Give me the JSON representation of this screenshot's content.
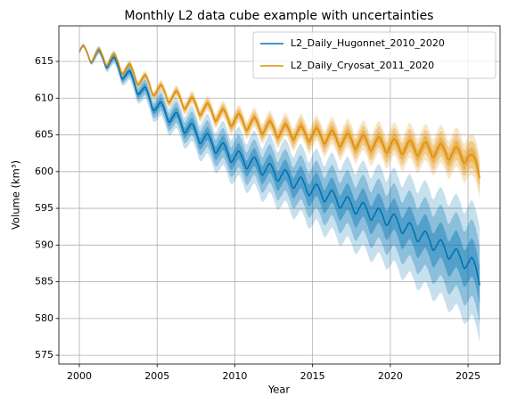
{
  "chart_data": {
    "type": "line",
    "title": "Monthly L2 data cube example with uncertainties",
    "xlabel": "Year",
    "ylabel": "Volume (km³)",
    "xlim": [
      1998.68,
      2027.06
    ],
    "ylim": [
      573.8,
      619.85
    ],
    "xticks": [
      2000,
      2005,
      2010,
      2015,
      2020,
      2025
    ],
    "yticks": [
      575,
      580,
      585,
      590,
      595,
      600,
      605,
      610,
      615
    ],
    "grid": true,
    "legend": "upper right",
    "x": [
      2000,
      2000.25,
      2000.5,
      2000.75,
      2001,
      2001.25,
      2001.5,
      2001.75,
      2002,
      2002.25,
      2002.5,
      2002.75,
      2003,
      2003.25,
      2003.5,
      2003.75,
      2004,
      2004.25,
      2004.5,
      2004.75,
      2005,
      2005.25,
      2005.5,
      2005.75,
      2006,
      2006.25,
      2006.5,
      2006.75,
      2007,
      2007.25,
      2007.5,
      2007.75,
      2008,
      2008.25,
      2008.5,
      2008.75,
      2009,
      2009.25,
      2009.5,
      2009.75,
      2010,
      2010.25,
      2010.5,
      2010.75,
      2011,
      2011.25,
      2011.5,
      2011.75,
      2012,
      2012.25,
      2012.5,
      2012.75,
      2013,
      2013.25,
      2013.5,
      2013.75,
      2014,
      2014.25,
      2014.5,
      2014.75,
      2015,
      2015.25,
      2015.5,
      2015.75,
      2016,
      2016.25,
      2016.5,
      2016.75,
      2017,
      2017.25,
      2017.5,
      2017.75,
      2018,
      2018.25,
      2018.5,
      2018.75,
      2019,
      2019.25,
      2019.5,
      2019.75,
      2020,
      2020.25,
      2020.5,
      2020.75,
      2021,
      2021.25,
      2021.5,
      2021.75,
      2022,
      2022.25,
      2022.5,
      2022.75,
      2023,
      2023.25,
      2023.5,
      2023.75,
      2024,
      2024.25,
      2024.5,
      2024.75,
      2025,
      2025.25,
      2025.5,
      2025.75
    ],
    "series": [
      {
        "name": "L2_Daily_Hugonnet_2010_2020",
        "color": "#0173b2",
        "values": [
          616.3,
          617.15,
          616.2,
          614.85,
          615.7,
          616.53,
          615.55,
          614.18,
          615.0,
          615.55,
          614.3,
          612.65,
          613.2,
          613.65,
          612.3,
          610.55,
          611.0,
          611.45,
          610.1,
          608.35,
          608.8,
          609.45,
          608.3,
          606.75,
          607.4,
          608.03,
          606.85,
          605.28,
          605.9,
          606.55,
          605.4,
          603.85,
          604.5,
          605.18,
          604.05,
          602.53,
          603.2,
          603.9,
          602.8,
          601.3,
          602.0,
          602.8,
          601.8,
          600.4,
          601.2,
          601.98,
          600.95,
          599.53,
          600.3,
          601.1,
          600.1,
          598.7,
          599.5,
          600.25,
          599.2,
          597.75,
          598.5,
          599.25,
          598.2,
          596.75,
          597.5,
          598.3,
          597.3,
          595.9,
          596.7,
          597.48,
          596.45,
          595.03,
          595.8,
          596.6,
          595.6,
          594.2,
          595.0,
          595.8,
          594.8,
          593.4,
          594.2,
          595.03,
          594.05,
          592.68,
          593.5,
          594.2,
          593.1,
          591.6,
          592.3,
          593.03,
          591.95,
          590.48,
          591.2,
          591.9,
          590.8,
          589.3,
          590.0,
          590.7,
          589.6,
          588.1,
          588.8,
          589.48,
          588.35,
          586.83,
          587.5,
          588.3,
          587.0,
          584.5
        ],
        "uncertainty": [
          0.1,
          0.1,
          0.1,
          0.1,
          0.2,
          0.2,
          0.2,
          0.2,
          0.3,
          0.3,
          0.3,
          0.3,
          0.4,
          0.4,
          0.4,
          0.4,
          0.5,
          0.5,
          0.5,
          0.5,
          0.6,
          0.6,
          0.6,
          0.6,
          0.7,
          0.7,
          0.7,
          0.7,
          0.8,
          0.8,
          0.8,
          0.8,
          0.9,
          0.9,
          0.9,
          0.9,
          1.0,
          1.0,
          1.0,
          1.0,
          1.1,
          1.1,
          1.1,
          1.1,
          1.2,
          1.2,
          1.2,
          1.2,
          1.3,
          1.3,
          1.3,
          1.3,
          1.4,
          1.4,
          1.4,
          1.4,
          1.5,
          1.5,
          1.5,
          1.5,
          1.6,
          1.6,
          1.6,
          1.6,
          1.7,
          1.7,
          1.7,
          1.7,
          1.8,
          1.8,
          1.8,
          1.8,
          1.9,
          1.9,
          1.9,
          1.9,
          2.0,
          2.0,
          2.0,
          2.0,
          2.1,
          2.1,
          2.1,
          2.1,
          2.2,
          2.2,
          2.2,
          2.2,
          2.3,
          2.3,
          2.3,
          2.3,
          2.4,
          2.4,
          2.4,
          2.4,
          2.5,
          2.5,
          2.5,
          2.5,
          2.6,
          2.6,
          2.6,
          2.6
        ]
      },
      {
        "name": "L2_Daily_Cryosat_2011_2020",
        "color": "#de8f05",
        "values": [
          616.3,
          617.18,
          616.25,
          614.93,
          615.8,
          616.68,
          615.75,
          614.43,
          615.3,
          615.98,
          614.85,
          613.33,
          614.0,
          614.63,
          613.45,
          611.88,
          612.5,
          613.13,
          611.95,
          610.38,
          611.0,
          611.8,
          610.8,
          609.4,
          610.2,
          610.98,
          609.95,
          608.53,
          609.3,
          610.1,
          609.1,
          607.7,
          608.5,
          609.3,
          608.3,
          606.9,
          607.7,
          608.53,
          607.55,
          606.18,
          607.0,
          607.88,
          606.95,
          605.63,
          606.5,
          607.38,
          606.45,
          605.13,
          606.0,
          606.88,
          605.95,
          604.63,
          605.5,
          606.45,
          605.6,
          604.35,
          605.3,
          606.23,
          605.35,
          604.08,
          605.0,
          605.93,
          605.05,
          603.78,
          604.7,
          605.6,
          604.7,
          603.4,
          604.3,
          605.23,
          604.35,
          603.08,
          604.0,
          604.95,
          604.1,
          602.85,
          603.8,
          604.73,
          603.85,
          602.58,
          603.5,
          604.45,
          603.6,
          602.35,
          603.3,
          604.25,
          603.4,
          602.15,
          603.1,
          604.05,
          603.2,
          601.95,
          602.9,
          603.8,
          602.9,
          601.6,
          602.5,
          603.38,
          602.45,
          601.13,
          602.0,
          602.3,
          601.5,
          599.1
        ],
        "uncertainty": [
          0.05,
          0.05,
          0.05,
          0.05,
          0.09,
          0.09,
          0.09,
          0.09,
          0.12,
          0.12,
          0.12,
          0.12,
          0.16,
          0.16,
          0.16,
          0.16,
          0.19,
          0.19,
          0.19,
          0.19,
          0.23,
          0.23,
          0.23,
          0.23,
          0.26,
          0.26,
          0.26,
          0.26,
          0.3,
          0.3,
          0.3,
          0.3,
          0.33,
          0.33,
          0.33,
          0.33,
          0.37,
          0.37,
          0.37,
          0.37,
          0.4,
          0.4,
          0.4,
          0.4,
          0.44,
          0.44,
          0.44,
          0.44,
          0.47,
          0.47,
          0.47,
          0.47,
          0.51,
          0.51,
          0.51,
          0.51,
          0.54,
          0.54,
          0.54,
          0.54,
          0.58,
          0.58,
          0.58,
          0.58,
          0.61,
          0.61,
          0.61,
          0.61,
          0.65,
          0.65,
          0.65,
          0.65,
          0.68,
          0.68,
          0.68,
          0.68,
          0.72,
          0.72,
          0.72,
          0.72,
          0.75,
          0.75,
          0.75,
          0.75,
          0.79,
          0.79,
          0.79,
          0.79,
          0.82,
          0.82,
          0.82,
          0.82,
          0.86,
          0.86,
          0.86,
          0.86,
          0.89,
          0.89,
          0.89,
          0.89,
          0.93,
          0.93,
          0.93,
          0.93
        ]
      }
    ]
  }
}
